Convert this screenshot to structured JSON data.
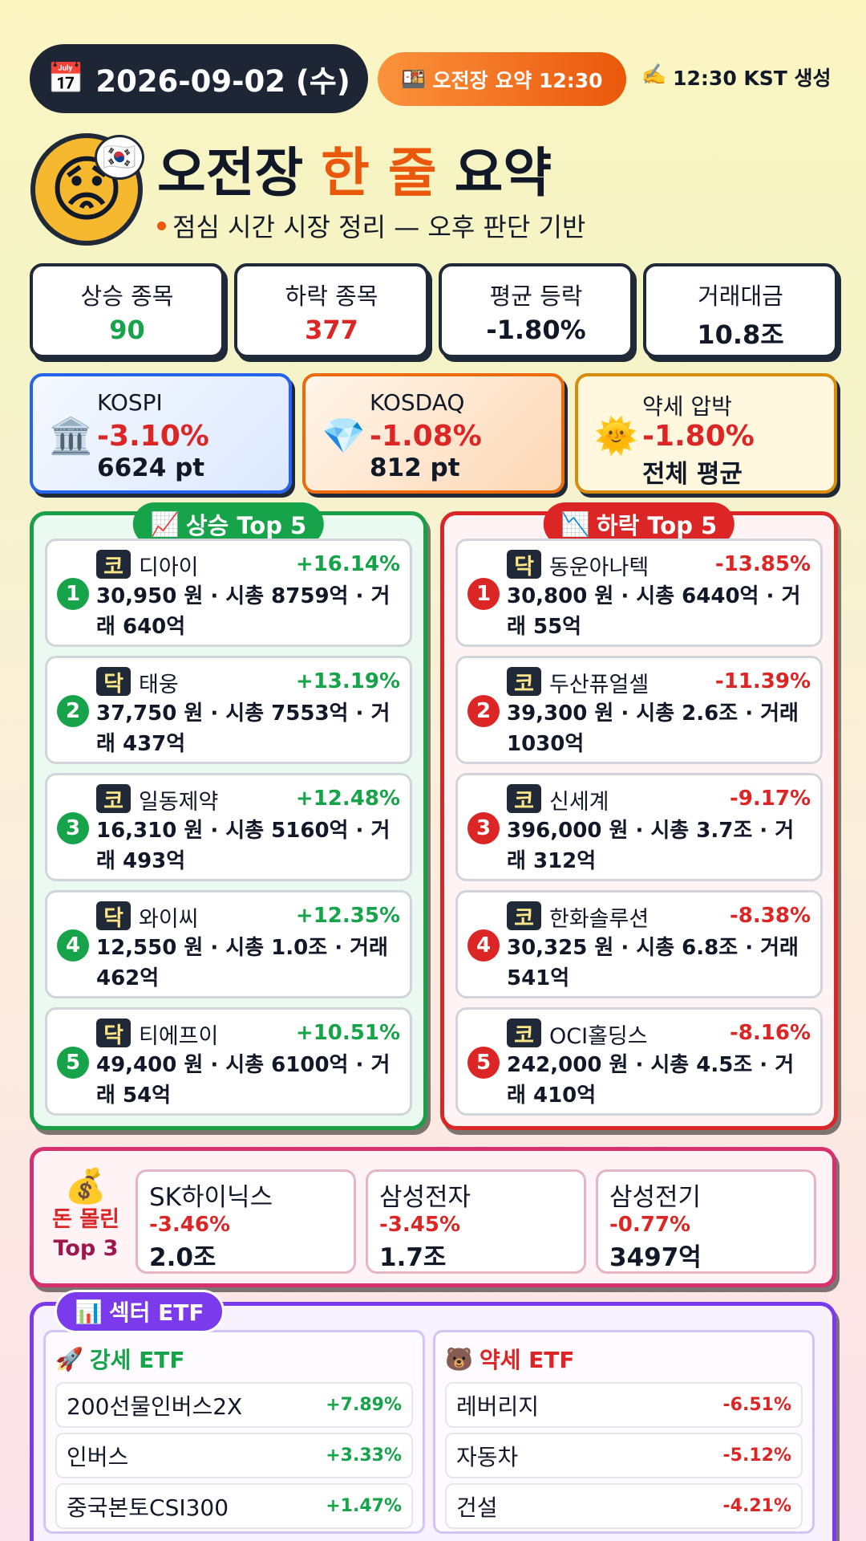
{
  "header": {
    "date": {
      "icon": "📅",
      "text": "2026-09-02 (수)"
    },
    "badge": {
      "icon": "🍱",
      "text": "오전장 요약 12:30"
    },
    "generated": {
      "icon": "✍️",
      "text": "12:30 KST 생성"
    },
    "avatar": "😟",
    "flag": "🇰🇷",
    "title": [
      "오전장",
      "한 줄",
      "요약"
    ],
    "subtitle": "점심 시간 시장 정리 — 오후 판단 기반"
  },
  "stats": [
    {
      "label": "상승 종목",
      "value": "90"
    },
    {
      "label": "하락 종목",
      "value": "377"
    },
    {
      "label": "평균 등락",
      "value": "-1.80%"
    },
    {
      "label": "거래대금",
      "value": "10.8조"
    }
  ],
  "indices": [
    {
      "icon": "🏛️",
      "name": "KOSPI",
      "change": "-3.10%",
      "value": "6624 pt"
    },
    {
      "icon": "💎",
      "name": "KOSDAQ",
      "change": "-1.08%",
      "value": "812 pt"
    },
    {
      "icon": "🌞",
      "name": "약세 압박",
      "change": "-1.80%",
      "value": "전체 평균"
    }
  ],
  "top_up": {
    "icon": "📈",
    "title": "상승 Top 5",
    "items": [
      {
        "rank": "1",
        "market": "코",
        "name": "디아이",
        "change": "+16.14%",
        "detail": "30,950 원 · 시총 8759억 · 거래 640억"
      },
      {
        "rank": "2",
        "market": "닥",
        "name": "태웅",
        "change": "+13.19%",
        "detail": "37,750 원 · 시총 7553억 · 거래 437억"
      },
      {
        "rank": "3",
        "market": "코",
        "name": "일동제약",
        "change": "+12.48%",
        "detail": "16,310 원 · 시총 5160억 · 거래 493억"
      },
      {
        "rank": "4",
        "market": "닥",
        "name": "와이씨",
        "change": "+12.35%",
        "detail": "12,550 원 · 시총 1.0조 · 거래 462억"
      },
      {
        "rank": "5",
        "market": "닥",
        "name": "티에프이",
        "change": "+10.51%",
        "detail": "49,400 원 · 시총 6100억 · 거래 54억"
      }
    ]
  },
  "top_down": {
    "icon": "📉",
    "title": "하락 Top 5",
    "items": [
      {
        "rank": "1",
        "market": "닥",
        "name": "동운아나텍",
        "change": "-13.85%",
        "detail": "30,800 원 · 시총 6440억 · 거래 55억"
      },
      {
        "rank": "2",
        "market": "코",
        "name": "두산퓨얼셀",
        "change": "-11.39%",
        "detail": "39,300 원 · 시총 2.6조 · 거래 1030억"
      },
      {
        "rank": "3",
        "market": "코",
        "name": "신세계",
        "change": "-9.17%",
        "detail": "396,000 원 · 시총 3.7조 · 거래 312억"
      },
      {
        "rank": "4",
        "market": "코",
        "name": "한화솔루션",
        "change": "-8.38%",
        "detail": "30,325 원 · 시총 6.8조 · 거래 541억"
      },
      {
        "rank": "5",
        "market": "코",
        "name": "OCI홀딩스",
        "change": "-8.16%",
        "detail": "242,000 원 · 시총 4.5조 · 거래 410억"
      }
    ]
  },
  "money": {
    "icon": "💰",
    "title": [
      "돈 몰린",
      "Top 3"
    ],
    "items": [
      {
        "name": "SK하이닉스",
        "change": "-3.46%",
        "amount": "2.0조"
      },
      {
        "name": "삼성전자",
        "change": "-3.45%",
        "amount": "1.7조"
      },
      {
        "name": "삼성전기",
        "change": "-0.77%",
        "amount": "3497억"
      }
    ]
  },
  "etf": {
    "icon": "📊",
    "title": "섹터 ETF",
    "strong": {
      "icon": "🚀",
      "title": "강세 ETF",
      "rows": [
        {
          "name": "200선물인버스2X",
          "change": "+7.89%"
        },
        {
          "name": "인버스",
          "change": "+3.33%"
        },
        {
          "name": "중국본토CSI300",
          "change": "+1.47%"
        }
      ]
    },
    "weak": {
      "icon": "🐻",
      "title": "약세 ETF",
      "rows": [
        {
          "name": "레버리지",
          "change": "-6.51%"
        },
        {
          "name": "자동차",
          "change": "-5.12%"
        },
        {
          "name": "건설",
          "change": "-4.21%"
        }
      ]
    }
  }
}
